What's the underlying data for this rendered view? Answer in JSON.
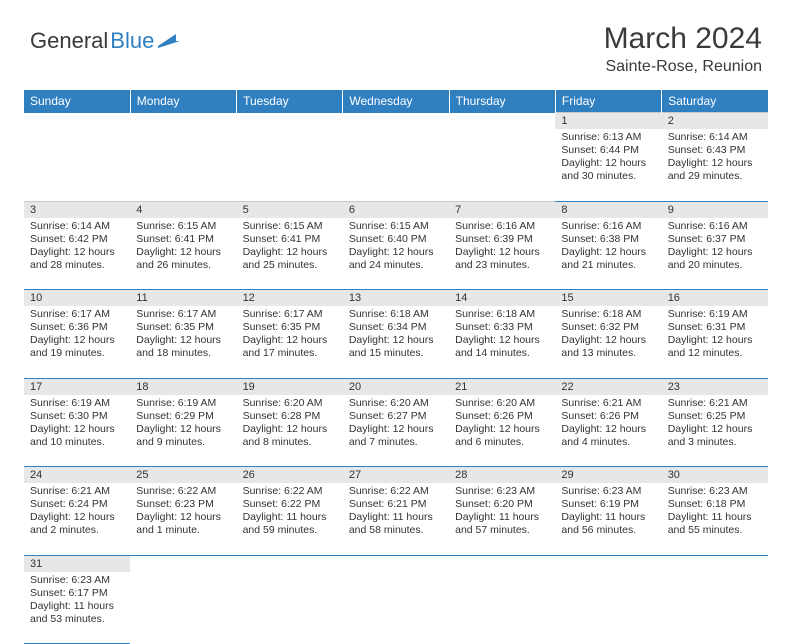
{
  "brand": {
    "word1": "General",
    "word2": "Blue"
  },
  "title": "March 2024",
  "location": "Sainte-Rose, Reunion",
  "weekdays": [
    "Sunday",
    "Monday",
    "Tuesday",
    "Wednesday",
    "Thursday",
    "Friday",
    "Saturday"
  ],
  "colors": {
    "accent": "#2f7fc1",
    "header_bg": "#2f7fc1",
    "daynum_bg": "#e7e7e7"
  },
  "weeks": [
    [
      null,
      null,
      null,
      null,
      null,
      {
        "n": "1",
        "sunrise": "Sunrise: 6:13 AM",
        "sunset": "Sunset: 6:44 PM",
        "day1": "Daylight: 12 hours",
        "day2": "and 30 minutes."
      },
      {
        "n": "2",
        "sunrise": "Sunrise: 6:14 AM",
        "sunset": "Sunset: 6:43 PM",
        "day1": "Daylight: 12 hours",
        "day2": "and 29 minutes."
      }
    ],
    [
      {
        "n": "3",
        "sunrise": "Sunrise: 6:14 AM",
        "sunset": "Sunset: 6:42 PM",
        "day1": "Daylight: 12 hours",
        "day2": "and 28 minutes."
      },
      {
        "n": "4",
        "sunrise": "Sunrise: 6:15 AM",
        "sunset": "Sunset: 6:41 PM",
        "day1": "Daylight: 12 hours",
        "day2": "and 26 minutes."
      },
      {
        "n": "5",
        "sunrise": "Sunrise: 6:15 AM",
        "sunset": "Sunset: 6:41 PM",
        "day1": "Daylight: 12 hours",
        "day2": "and 25 minutes."
      },
      {
        "n": "6",
        "sunrise": "Sunrise: 6:15 AM",
        "sunset": "Sunset: 6:40 PM",
        "day1": "Daylight: 12 hours",
        "day2": "and 24 minutes."
      },
      {
        "n": "7",
        "sunrise": "Sunrise: 6:16 AM",
        "sunset": "Sunset: 6:39 PM",
        "day1": "Daylight: 12 hours",
        "day2": "and 23 minutes."
      },
      {
        "n": "8",
        "sunrise": "Sunrise: 6:16 AM",
        "sunset": "Sunset: 6:38 PM",
        "day1": "Daylight: 12 hours",
        "day2": "and 21 minutes."
      },
      {
        "n": "9",
        "sunrise": "Sunrise: 6:16 AM",
        "sunset": "Sunset: 6:37 PM",
        "day1": "Daylight: 12 hours",
        "day2": "and 20 minutes."
      }
    ],
    [
      {
        "n": "10",
        "sunrise": "Sunrise: 6:17 AM",
        "sunset": "Sunset: 6:36 PM",
        "day1": "Daylight: 12 hours",
        "day2": "and 19 minutes."
      },
      {
        "n": "11",
        "sunrise": "Sunrise: 6:17 AM",
        "sunset": "Sunset: 6:35 PM",
        "day1": "Daylight: 12 hours",
        "day2": "and 18 minutes."
      },
      {
        "n": "12",
        "sunrise": "Sunrise: 6:17 AM",
        "sunset": "Sunset: 6:35 PM",
        "day1": "Daylight: 12 hours",
        "day2": "and 17 minutes."
      },
      {
        "n": "13",
        "sunrise": "Sunrise: 6:18 AM",
        "sunset": "Sunset: 6:34 PM",
        "day1": "Daylight: 12 hours",
        "day2": "and 15 minutes."
      },
      {
        "n": "14",
        "sunrise": "Sunrise: 6:18 AM",
        "sunset": "Sunset: 6:33 PM",
        "day1": "Daylight: 12 hours",
        "day2": "and 14 minutes."
      },
      {
        "n": "15",
        "sunrise": "Sunrise: 6:18 AM",
        "sunset": "Sunset: 6:32 PM",
        "day1": "Daylight: 12 hours",
        "day2": "and 13 minutes."
      },
      {
        "n": "16",
        "sunrise": "Sunrise: 6:19 AM",
        "sunset": "Sunset: 6:31 PM",
        "day1": "Daylight: 12 hours",
        "day2": "and 12 minutes."
      }
    ],
    [
      {
        "n": "17",
        "sunrise": "Sunrise: 6:19 AM",
        "sunset": "Sunset: 6:30 PM",
        "day1": "Daylight: 12 hours",
        "day2": "and 10 minutes."
      },
      {
        "n": "18",
        "sunrise": "Sunrise: 6:19 AM",
        "sunset": "Sunset: 6:29 PM",
        "day1": "Daylight: 12 hours",
        "day2": "and 9 minutes."
      },
      {
        "n": "19",
        "sunrise": "Sunrise: 6:20 AM",
        "sunset": "Sunset: 6:28 PM",
        "day1": "Daylight: 12 hours",
        "day2": "and 8 minutes."
      },
      {
        "n": "20",
        "sunrise": "Sunrise: 6:20 AM",
        "sunset": "Sunset: 6:27 PM",
        "day1": "Daylight: 12 hours",
        "day2": "and 7 minutes."
      },
      {
        "n": "21",
        "sunrise": "Sunrise: 6:20 AM",
        "sunset": "Sunset: 6:26 PM",
        "day1": "Daylight: 12 hours",
        "day2": "and 6 minutes."
      },
      {
        "n": "22",
        "sunrise": "Sunrise: 6:21 AM",
        "sunset": "Sunset: 6:26 PM",
        "day1": "Daylight: 12 hours",
        "day2": "and 4 minutes."
      },
      {
        "n": "23",
        "sunrise": "Sunrise: 6:21 AM",
        "sunset": "Sunset: 6:25 PM",
        "day1": "Daylight: 12 hours",
        "day2": "and 3 minutes."
      }
    ],
    [
      {
        "n": "24",
        "sunrise": "Sunrise: 6:21 AM",
        "sunset": "Sunset: 6:24 PM",
        "day1": "Daylight: 12 hours",
        "day2": "and 2 minutes."
      },
      {
        "n": "25",
        "sunrise": "Sunrise: 6:22 AM",
        "sunset": "Sunset: 6:23 PM",
        "day1": "Daylight: 12 hours",
        "day2": "and 1 minute."
      },
      {
        "n": "26",
        "sunrise": "Sunrise: 6:22 AM",
        "sunset": "Sunset: 6:22 PM",
        "day1": "Daylight: 11 hours",
        "day2": "and 59 minutes."
      },
      {
        "n": "27",
        "sunrise": "Sunrise: 6:22 AM",
        "sunset": "Sunset: 6:21 PM",
        "day1": "Daylight: 11 hours",
        "day2": "and 58 minutes."
      },
      {
        "n": "28",
        "sunrise": "Sunrise: 6:23 AM",
        "sunset": "Sunset: 6:20 PM",
        "day1": "Daylight: 11 hours",
        "day2": "and 57 minutes."
      },
      {
        "n": "29",
        "sunrise": "Sunrise: 6:23 AM",
        "sunset": "Sunset: 6:19 PM",
        "day1": "Daylight: 11 hours",
        "day2": "and 56 minutes."
      },
      {
        "n": "30",
        "sunrise": "Sunrise: 6:23 AM",
        "sunset": "Sunset: 6:18 PM",
        "day1": "Daylight: 11 hours",
        "day2": "and 55 minutes."
      }
    ],
    [
      {
        "n": "31",
        "sunrise": "Sunrise: 6:23 AM",
        "sunset": "Sunset: 6:17 PM",
        "day1": "Daylight: 11 hours",
        "day2": "and 53 minutes."
      },
      null,
      null,
      null,
      null,
      null,
      null
    ]
  ]
}
